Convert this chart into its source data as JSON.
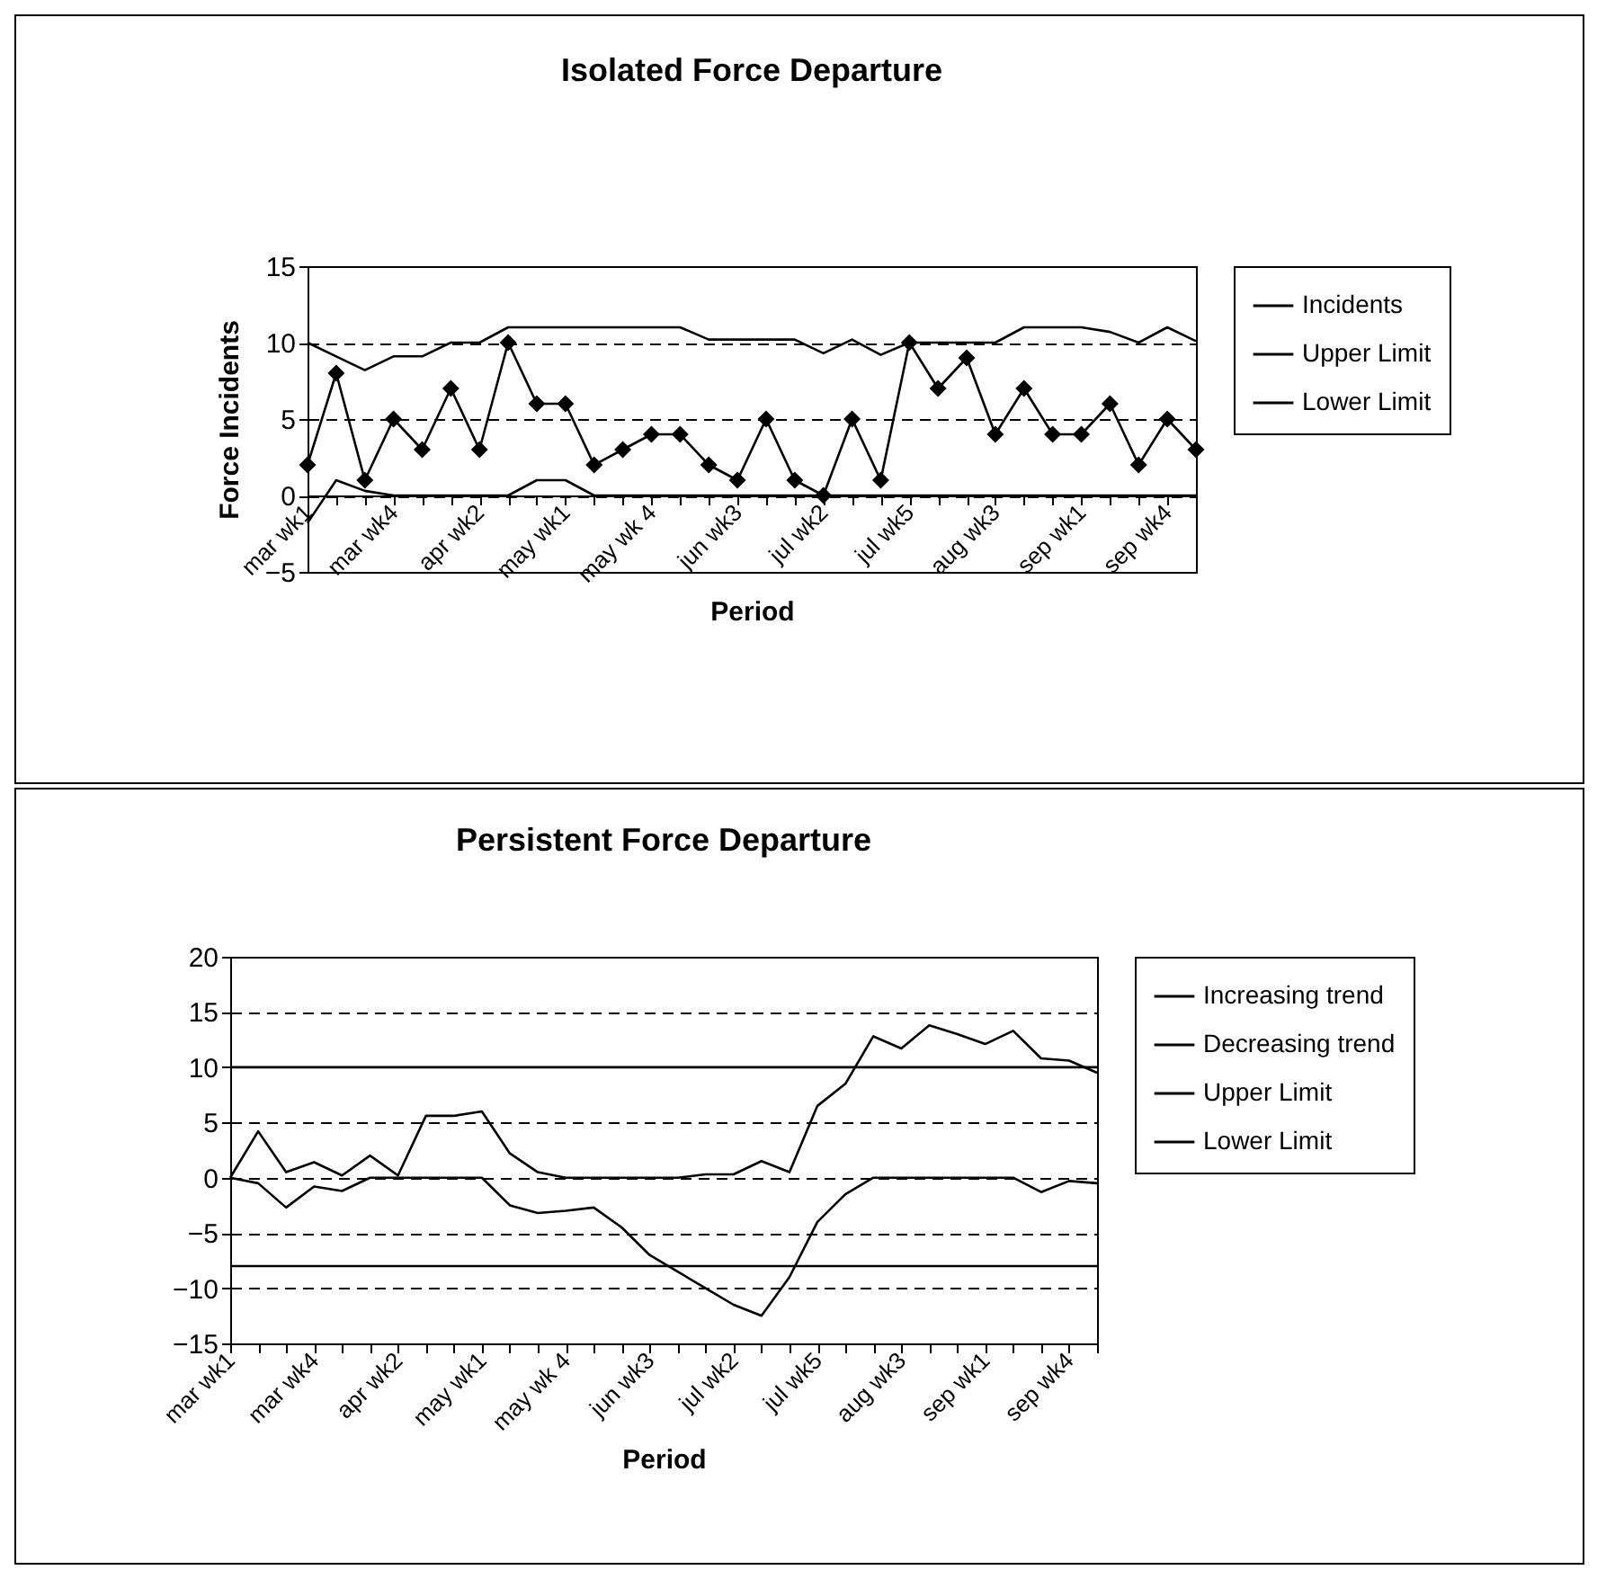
{
  "chart_data": [
    {
      "type": "line",
      "title": "Isolated Force Departure",
      "xlabel": "Period",
      "ylabel": "Force Incidents",
      "categories": [
        "mar wk1",
        null,
        null,
        "mar wk4",
        null,
        null,
        "apr wk2",
        null,
        null,
        "may wk1",
        null,
        null,
        "may wk 4",
        null,
        null,
        "jun wk3",
        null,
        null,
        "jul wk2",
        null,
        null,
        "jul wk5",
        null,
        null,
        "aug wk3",
        null,
        null,
        "sep wk1",
        null,
        null,
        "sep wk4",
        null
      ],
      "series": [
        {
          "name": "Incidents",
          "color": "#000000",
          "marker": "diamond",
          "values": [
            2,
            8,
            1,
            5,
            3,
            7,
            3,
            10,
            6,
            6,
            2,
            3,
            4,
            4,
            2,
            1,
            5,
            1,
            0,
            5,
            1,
            10,
            7,
            9,
            4,
            7,
            4,
            4,
            6,
            2,
            5,
            3
          ]
        },
        {
          "name": "Upper Limit",
          "color": "#000000",
          "values": [
            10,
            9.1,
            8.2,
            9.1,
            9.1,
            10,
            10,
            11,
            11,
            11,
            11,
            11,
            11,
            11,
            10.2,
            10.2,
            10.2,
            10.2,
            9.3,
            10.2,
            9.2,
            10,
            10,
            10,
            10,
            11,
            11,
            11,
            10.7,
            10,
            11,
            10.1
          ]
        },
        {
          "name": "Lower Limit",
          "color": "#000000",
          "values": [
            -1.8,
            1,
            0.3,
            0,
            0,
            0,
            0,
            0,
            1,
            1,
            0,
            0,
            0,
            0,
            0,
            0,
            0,
            0,
            0,
            0,
            0,
            0,
            0,
            0,
            0,
            0,
            0,
            0,
            0,
            0,
            0,
            0
          ]
        }
      ],
      "ylim": [
        -5,
        15
      ],
      "yticks": [
        -5,
        0,
        5,
        10,
        15
      ],
      "grid": "y",
      "legend": "right"
    },
    {
      "type": "line",
      "title": "Persistent Force Departure",
      "xlabel": "Period",
      "categories": [
        "mar wk1",
        null,
        null,
        "mar wk4",
        null,
        null,
        "apr wk2",
        null,
        null,
        "may wk1",
        null,
        null,
        "may wk 4",
        null,
        null,
        "jun wk3",
        null,
        null,
        "jul wk2",
        null,
        null,
        "jul wk5",
        null,
        null,
        "aug wk3",
        null,
        null,
        "sep wk1",
        null,
        null,
        "sep wk4",
        null
      ],
      "series": [
        {
          "name": "Increasing trend",
          "color": "#000000",
          "values": [
            0,
            4.2,
            0.5,
            1.4,
            0.2,
            2,
            0.2,
            5.6,
            5.6,
            6,
            2.2,
            0.5,
            0,
            0,
            0,
            0,
            0,
            0.3,
            0.3,
            1.5,
            0.5,
            6.5,
            8.5,
            12.8,
            11.7,
            13.8,
            13,
            12.1,
            13.3,
            10.8,
            10.6,
            9.5
          ]
        },
        {
          "name": "Decreasing trend",
          "color": "#000000",
          "values": [
            0,
            -0.5,
            -2.7,
            -0.8,
            -1.2,
            0,
            0,
            0,
            0,
            0,
            -2.5,
            -3.2,
            -3,
            -2.7,
            -4.5,
            -7,
            -8.5,
            -10,
            -11.5,
            -12.5,
            -9,
            -4,
            -1.5,
            0,
            0,
            0,
            0,
            0,
            0,
            -1.3,
            -0.3,
            -0.5
          ]
        },
        {
          "name": "Upper Limit",
          "color": "#000000",
          "values": [
            10,
            10,
            10,
            10,
            10,
            10,
            10,
            10,
            10,
            10,
            10,
            10,
            10,
            10,
            10,
            10,
            10,
            10,
            10,
            10,
            10,
            10,
            10,
            10,
            10,
            10,
            10,
            10,
            10,
            10,
            10,
            10
          ]
        },
        {
          "name": "Lower Limit",
          "color": "#000000",
          "values": [
            -8,
            -8,
            -8,
            -8,
            -8,
            -8,
            -8,
            -8,
            -8,
            -8,
            -8,
            -8,
            -8,
            -8,
            -8,
            -8,
            -8,
            -8,
            -8,
            -8,
            -8,
            -8,
            -8,
            -8,
            -8,
            -8,
            -8,
            -8,
            -8,
            -8,
            -8,
            -8
          ]
        }
      ],
      "ylim": [
        -15,
        20
      ],
      "yticks": [
        -15,
        -10,
        -5,
        0,
        5,
        10,
        15,
        20
      ],
      "grid": "y",
      "legend": "right"
    }
  ]
}
